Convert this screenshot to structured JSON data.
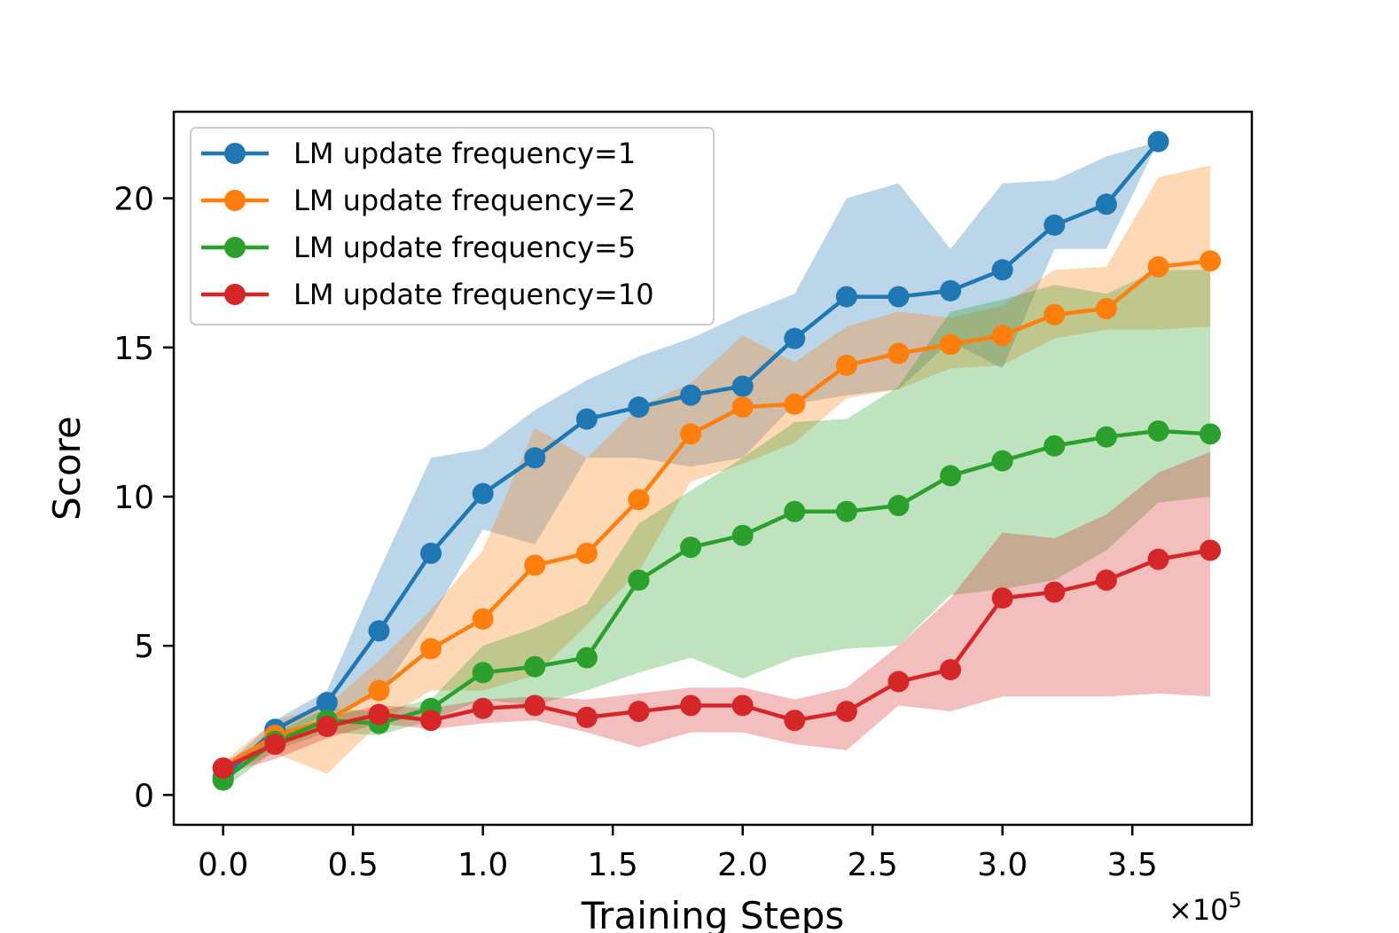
{
  "chart_data": {
    "type": "line",
    "title": "",
    "xlabel": "Training Steps",
    "ylabel": "Score",
    "x_multiplier_label": "×10",
    "x_multiplier_exponent": "5",
    "xlim": [
      -0.19,
      3.96
    ],
    "ylim": [
      -1,
      22.9
    ],
    "x_ticks": [
      0.0,
      0.5,
      1.0,
      1.5,
      2.0,
      2.5,
      3.0,
      3.5
    ],
    "x_tick_labels": [
      "0.0",
      "0.5",
      "1.0",
      "1.5",
      "2.0",
      "2.5",
      "3.0",
      "3.5"
    ],
    "y_ticks": [
      0,
      5,
      10,
      15,
      20
    ],
    "y_tick_labels": [
      "0",
      "5",
      "10",
      "15",
      "20"
    ],
    "grid": false,
    "legend_position": "top-left",
    "series": [
      {
        "name": "LM update frequency=1",
        "color": "#1f77b4",
        "x": [
          0,
          0.2,
          0.4,
          0.6,
          0.8,
          1.0,
          1.2,
          1.4,
          1.6,
          1.8,
          2.0,
          2.2,
          2.4,
          2.6,
          2.8,
          3.0,
          3.2,
          3.4,
          3.6
        ],
        "values": [
          0.6,
          2.2,
          3.1,
          5.5,
          8.1,
          10.1,
          11.3,
          12.6,
          13.0,
          13.4,
          13.7,
          15.3,
          16.7,
          16.7,
          16.9,
          17.6,
          19.1,
          19.8,
          21.9
        ],
        "upper": [
          0.9,
          2.5,
          3.5,
          7.5,
          11.3,
          11.6,
          12.9,
          13.9,
          14.7,
          15.3,
          16.1,
          16.8,
          20.0,
          20.5,
          18.3,
          20.5,
          20.6,
          21.4,
          21.9
        ],
        "lower": [
          0.4,
          1.9,
          2.7,
          3.3,
          5.9,
          8.9,
          8.4,
          11.3,
          11.3,
          11.0,
          11.3,
          13.1,
          13.4,
          13.6,
          15.2,
          14.3,
          18.3,
          18.3,
          21.9
        ]
      },
      {
        "name": "LM update frequency=2",
        "color": "#ff7f0e",
        "x": [
          0,
          0.2,
          0.4,
          0.6,
          0.8,
          1.0,
          1.2,
          1.4,
          1.6,
          1.8,
          2.0,
          2.2,
          2.4,
          2.6,
          2.8,
          3.0,
          3.2,
          3.4,
          3.6,
          3.8
        ],
        "values": [
          0.9,
          2.0,
          2.5,
          3.5,
          4.9,
          5.9,
          7.7,
          8.1,
          9.9,
          12.1,
          13.0,
          13.1,
          14.4,
          14.8,
          15.1,
          15.4,
          16.1,
          16.3,
          17.7,
          17.9
        ],
        "upper": [
          1.1,
          2.5,
          3.0,
          4.5,
          6.2,
          8.2,
          12.3,
          11.3,
          13.0,
          13.8,
          15.4,
          14.5,
          15.7,
          16.2,
          16.0,
          16.4,
          17.6,
          17.7,
          20.7,
          21.1
        ],
        "lower": [
          0.7,
          1.4,
          0.7,
          2.4,
          3.5,
          3.5,
          4.0,
          5.7,
          7.5,
          10.5,
          11.1,
          11.8,
          13.3,
          13.6,
          14.3,
          14.4,
          15.3,
          15.6,
          15.6,
          15.7
        ]
      },
      {
        "name": "LM update frequency=5",
        "color": "#2ca02c",
        "x": [
          0,
          0.2,
          0.4,
          0.6,
          0.8,
          1.0,
          1.2,
          1.4,
          1.6,
          1.8,
          2.0,
          2.2,
          2.4,
          2.6,
          2.8,
          3.0,
          3.2,
          3.4,
          3.6,
          3.8
        ],
        "values": [
          0.5,
          1.8,
          2.5,
          2.4,
          2.9,
          4.1,
          4.3,
          4.6,
          7.2,
          8.3,
          8.7,
          9.5,
          9.5,
          9.7,
          10.7,
          11.2,
          11.7,
          12.0,
          12.2,
          12.1
        ],
        "upper": [
          0.8,
          2.1,
          2.9,
          2.8,
          3.2,
          5.0,
          5.6,
          6.4,
          9.1,
          10.2,
          11.3,
          12.5,
          12.6,
          13.7,
          16.2,
          16.6,
          17.1,
          16.8,
          17.6,
          17.6
        ],
        "lower": [
          0.2,
          1.5,
          2.1,
          2.0,
          2.5,
          3.2,
          3.0,
          3.5,
          4.1,
          4.6,
          3.9,
          4.6,
          4.9,
          5.0,
          6.7,
          6.9,
          7.2,
          8.2,
          9.8,
          10.0
        ]
      },
      {
        "name": "LM update frequency=10",
        "color": "#d62728",
        "x": [
          0,
          0.2,
          0.4,
          0.6,
          0.8,
          1.0,
          1.2,
          1.4,
          1.6,
          1.8,
          2.0,
          2.2,
          2.4,
          2.6,
          2.8,
          3.0,
          3.2,
          3.4,
          3.6,
          3.8
        ],
        "values": [
          0.9,
          1.7,
          2.3,
          2.7,
          2.5,
          2.9,
          3.0,
          2.6,
          2.8,
          3.0,
          3.0,
          2.5,
          2.8,
          3.8,
          4.2,
          6.6,
          6.8,
          7.2,
          7.9,
          8.2
        ],
        "upper": [
          1.1,
          2.0,
          2.6,
          3.0,
          2.9,
          3.2,
          3.3,
          3.2,
          3.4,
          3.6,
          3.6,
          3.2,
          3.6,
          5.0,
          6.6,
          8.8,
          8.6,
          9.4,
          10.8,
          11.5
        ],
        "lower": [
          0.7,
          1.2,
          1.9,
          2.4,
          2.2,
          2.4,
          2.5,
          2.1,
          1.6,
          2.1,
          2.1,
          1.7,
          1.5,
          3.0,
          2.8,
          3.3,
          3.3,
          3.3,
          3.4,
          3.3
        ]
      }
    ]
  }
}
